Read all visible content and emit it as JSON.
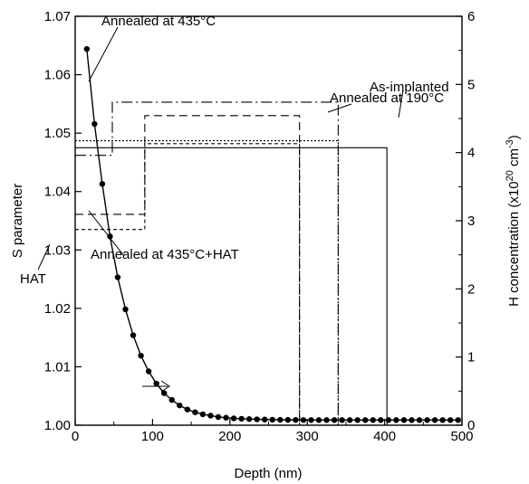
{
  "chart_data": {
    "type": "line",
    "title": "",
    "xlabel": "Depth (nm)",
    "ylabel_left": "S parameter",
    "ylabel_right_parts": [
      "H concentration (x10",
      "20",
      " cm",
      "-3",
      ")"
    ],
    "xlim": [
      0,
      500
    ],
    "ylim_left": [
      1.0,
      1.07
    ],
    "ylim_right": [
      0,
      6
    ],
    "x_ticks": [
      0,
      100,
      200,
      300,
      400,
      500
    ],
    "x_tick_labels": [
      "0",
      "100",
      "200",
      "300",
      "400",
      "500"
    ],
    "y_left_ticks": [
      1.0,
      1.01,
      1.02,
      1.03,
      1.04,
      1.05,
      1.06,
      1.07
    ],
    "y_left_tick_labels": [
      "1.00",
      "1.01",
      "1.02",
      "1.03",
      "1.04",
      "1.05",
      "1.06",
      "1.07"
    ],
    "y_right_ticks": [
      0,
      1,
      2,
      3,
      4,
      5,
      6
    ],
    "y_right_tick_labels": [
      "0",
      "1",
      "2",
      "3",
      "4",
      "5",
      "6"
    ],
    "grid": false,
    "legend": "none",
    "h_concentration": {
      "axis": "right",
      "x": [
        15,
        25,
        35,
        45,
        55,
        65,
        75,
        85,
        95,
        105,
        115,
        125,
        135,
        145,
        155,
        165,
        175,
        185,
        195,
        205,
        215,
        225,
        235,
        245,
        255,
        265,
        275,
        285,
        295,
        305,
        315,
        325,
        335,
        345,
        355,
        365,
        375,
        385,
        395,
        405,
        415,
        425,
        435,
        445,
        455,
        465,
        475,
        485,
        495
      ],
      "y": [
        5.52,
        4.42,
        3.54,
        2.77,
        2.17,
        1.7,
        1.32,
        1.02,
        0.79,
        0.61,
        0.47,
        0.37,
        0.29,
        0.23,
        0.19,
        0.16,
        0.14,
        0.12,
        0.11,
        0.1,
        0.094,
        0.09,
        0.086,
        0.083,
        0.081,
        0.079,
        0.078,
        0.077,
        0.076,
        0.076,
        0.075,
        0.075,
        0.075,
        0.075,
        0.075,
        0.075,
        0.075,
        0.075,
        0.075,
        0.075,
        0.075,
        0.075,
        0.075,
        0.075,
        0.075,
        0.075,
        0.075,
        0.075,
        0.075
      ],
      "color": "#000000"
    },
    "s_parameter_profiles": [
      {
        "name": "As-implanted",
        "style": "solid",
        "steps": [
          {
            "x0": 0,
            "x1": 403,
            "s": 1.0475
          }
        ]
      },
      {
        "name": "Annealed at 190°C",
        "style": "dotted",
        "steps": [
          {
            "x0": 0,
            "x1": 340,
            "s": 1.0487
          }
        ]
      },
      {
        "name": "Annealed at 435°C",
        "style": "dashdot",
        "steps": [
          {
            "x0": 0,
            "x1": 48,
            "s": 1.0462
          },
          {
            "x0": 48,
            "x1": 340,
            "s": 1.0553
          }
        ]
      },
      {
        "name": "Annealed at 435°C+HAT",
        "style": "dashed",
        "steps": [
          {
            "x0": 0,
            "x1": 90,
            "s": 1.0361
          },
          {
            "x0": 95,
            "x1": 290,
            "s": 1.053
          }
        ]
      },
      {
        "name": "HAT",
        "style": "short-dashed",
        "steps": [
          {
            "x0": 0,
            "x1": 90,
            "s": 1.0335
          },
          {
            "x0": 90,
            "x1": 290,
            "s": 1.0482
          }
        ]
      }
    ],
    "annotations": [
      {
        "text": "Annealed at 435°C",
        "target": "Annealed at 435°C"
      },
      {
        "text": "Annealed at 190°C",
        "target": "Annealed at 190°C"
      },
      {
        "text": "As-implanted",
        "target": "As-implanted"
      },
      {
        "text": "Annealed at 435°C+HAT",
        "target": "Annealed at 435°C+HAT"
      },
      {
        "text": "HAT",
        "target": "HAT"
      }
    ]
  }
}
